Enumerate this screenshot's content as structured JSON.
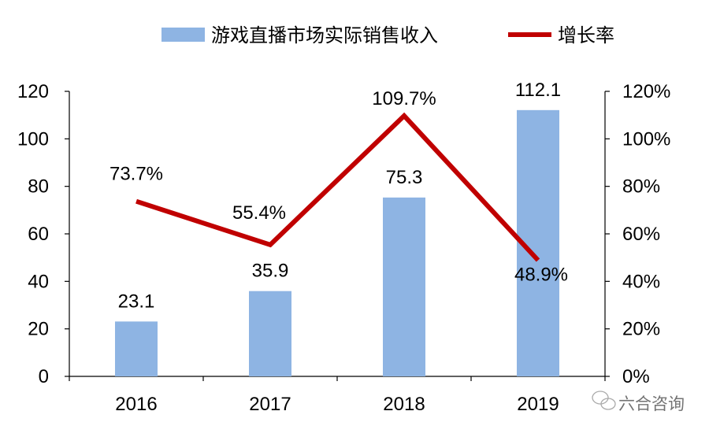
{
  "chart_data": {
    "type": "bar+line",
    "categories": [
      "2016",
      "2017",
      "2018",
      "2019"
    ],
    "series": [
      {
        "name": "游戏直播市场实际销售收入",
        "type": "bar",
        "axis": "left",
        "values": [
          23.1,
          35.9,
          75.3,
          112.1
        ],
        "labels": [
          "23.1",
          "35.9",
          "75.3",
          "112.1"
        ],
        "color": "#8EB4E3"
      },
      {
        "name": "增长率",
        "type": "line",
        "axis": "right",
        "values": [
          73.7,
          55.4,
          109.7,
          48.9
        ],
        "labels": [
          "73.7%",
          "55.4%",
          "109.7%",
          "48.9%"
        ],
        "color": "#C00000"
      }
    ],
    "y_left": {
      "range": [
        0,
        120
      ],
      "ticks": [
        "0",
        "20",
        "40",
        "60",
        "80",
        "100",
        "120"
      ]
    },
    "y_right": {
      "range": [
        0,
        120
      ],
      "unit": "%",
      "ticks": [
        "0%",
        "20%",
        "40%",
        "60%",
        "80%",
        "100%",
        "120%"
      ]
    },
    "grid": false,
    "legend": "top"
  },
  "watermark": {
    "text": "六合咨询",
    "icon": "wechat-icon"
  }
}
